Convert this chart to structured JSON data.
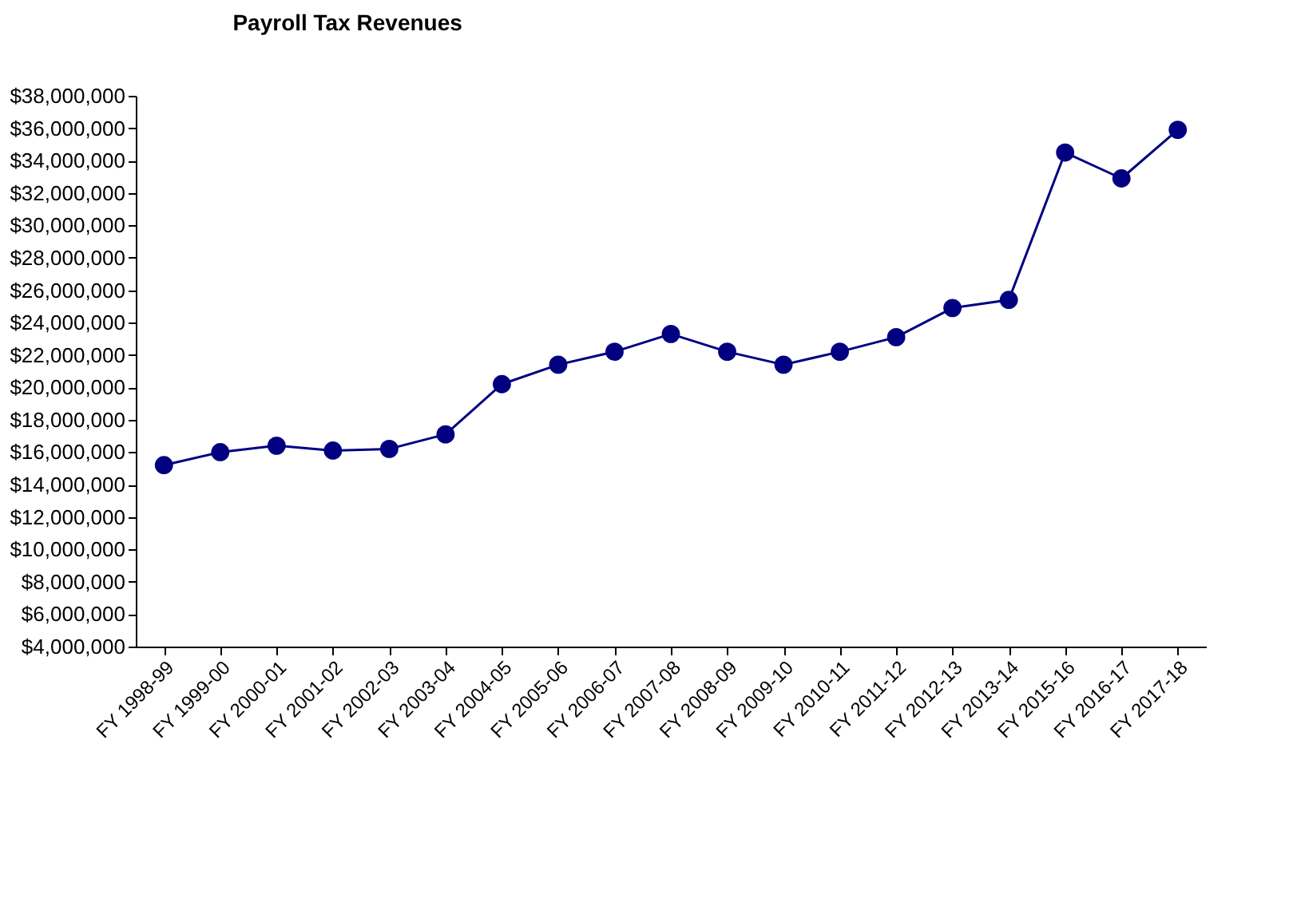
{
  "chart_data": {
    "type": "line",
    "title": "Payroll Tax Revenues",
    "categories": [
      "FY 1998-99",
      "FY 1999-00",
      "FY 2000-01",
      "FY 2001-02",
      "FY 2002-03",
      "FY 2003-04",
      "FY 2004-05",
      "FY 2005-06",
      "FY 2006-07",
      "FY 2007-08",
      "FY 2008-09",
      "FY 2009-10",
      "FY 2010-11",
      "FY 2011-12",
      "FY 2012-13",
      "FY 2013-14",
      "FY 2015-16",
      "FY 2016-17",
      "FY 2017-18"
    ],
    "series": [
      {
        "color": "#000080",
        "values": [
          15200000,
          16000000,
          16400000,
          16100000,
          16200000,
          17100000,
          20200000,
          21400000,
          22200000,
          23300000,
          22200000,
          21400000,
          22200000,
          23100000,
          24900000,
          25400000,
          34500000,
          32900000,
          35900000
        ]
      }
    ],
    "ylim": [
      4000000,
      38000000
    ],
    "yticks": [
      {
        "value": 4000000,
        "label": "$4,000,000"
      },
      {
        "value": 6000000,
        "label": "$6,000,000"
      },
      {
        "value": 8000000,
        "label": "$8,000,000"
      },
      {
        "value": 10000000,
        "label": "$10,000,000"
      },
      {
        "value": 12000000,
        "label": "$12,000,000"
      },
      {
        "value": 14000000,
        "label": "$14,000,000"
      },
      {
        "value": 16000000,
        "label": "$16,000,000"
      },
      {
        "value": 18000000,
        "label": "$18,000,000"
      },
      {
        "value": 20000000,
        "label": "$20,000,000"
      },
      {
        "value": 22000000,
        "label": "$22,000,000"
      },
      {
        "value": 24000000,
        "label": "$24,000,000"
      },
      {
        "value": 26000000,
        "label": "$26,000,000"
      },
      {
        "value": 28000000,
        "label": "$28,000,000"
      },
      {
        "value": 30000000,
        "label": "$30,000,000"
      },
      {
        "value": 32000000,
        "label": "$32,000,000"
      },
      {
        "value": 34000000,
        "label": "$34,000,000"
      },
      {
        "value": 36000000,
        "label": "$36,000,000"
      },
      {
        "value": 38000000,
        "label": "$38,000,000"
      }
    ],
    "grid": false,
    "marker": "circle",
    "line_style": "solid"
  }
}
